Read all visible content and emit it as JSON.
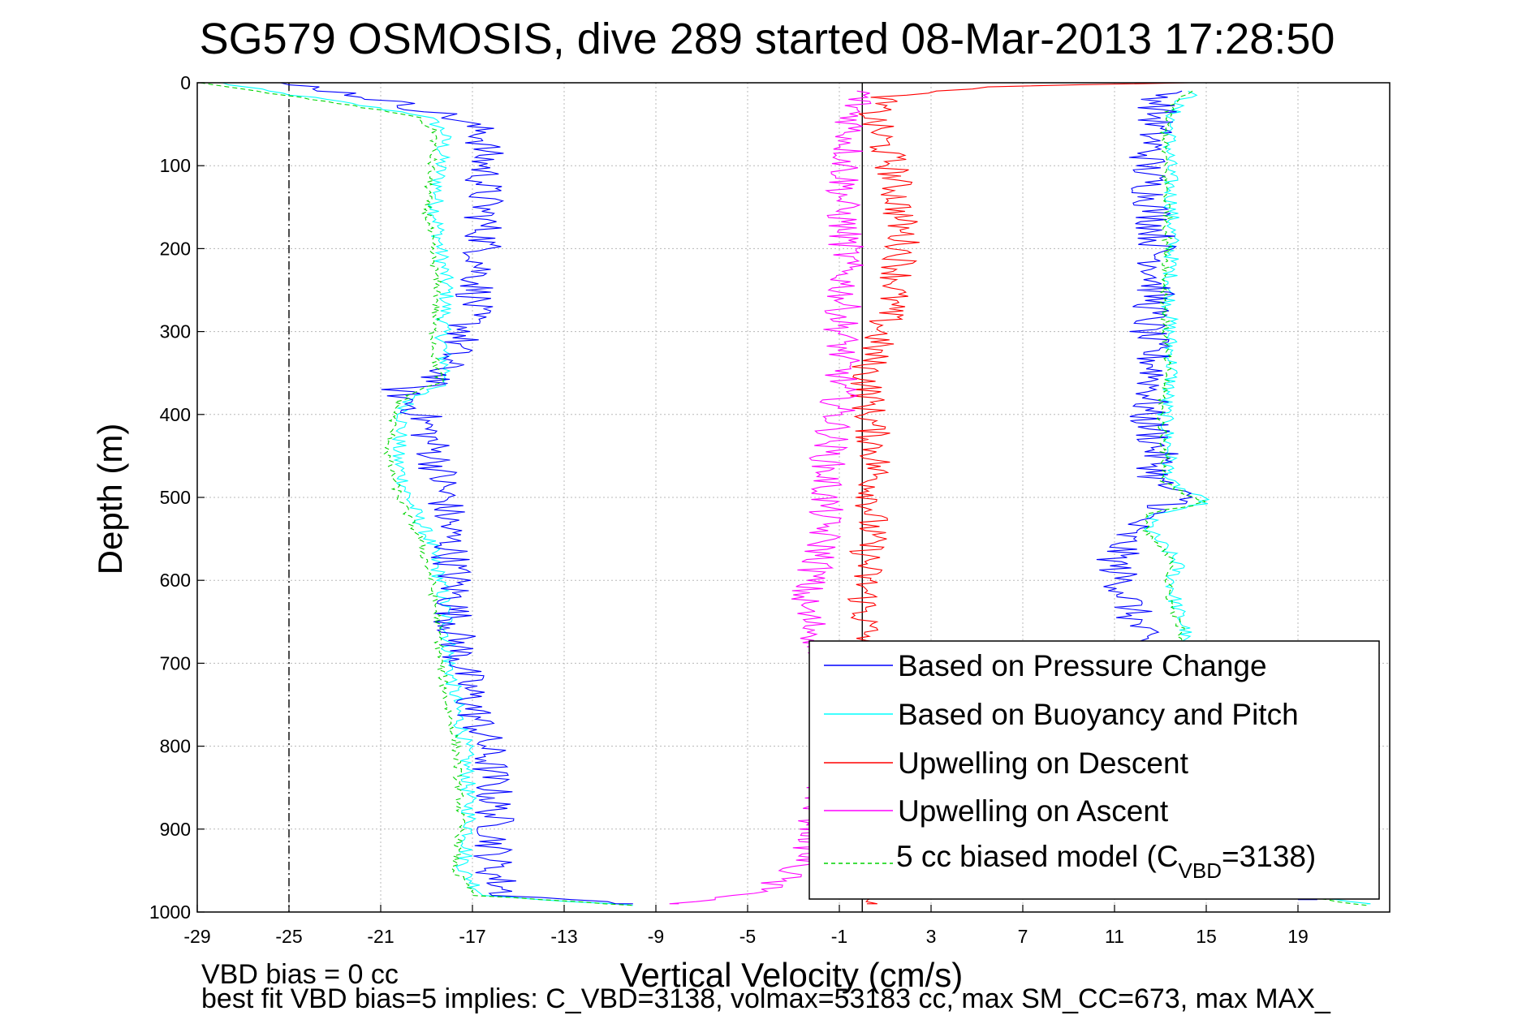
{
  "chart_data": {
    "type": "line",
    "title": "SG579 OSMOSIS, dive 289 started 08-Mar-2013 17:28:50",
    "xlabel": "Vertical Velocity (cm/s)",
    "ylabel": "Depth (m)",
    "xlim": [
      -29,
      23
    ],
    "ylim": [
      1000,
      0
    ],
    "y_reversed": true,
    "grid": true,
    "x_ticks": [
      "-29",
      "-25",
      "-21",
      "-17",
      "-13",
      "-9",
      "-5",
      "-1",
      "3",
      "7",
      "11",
      "15",
      "19"
    ],
    "y_ticks": [
      "0",
      "100",
      "200",
      "300",
      "400",
      "500",
      "600",
      "700",
      "800",
      "900",
      "1000"
    ],
    "reference_lines": [
      {
        "x": -25,
        "style": "dash-dot",
        "color": "#000000"
      },
      {
        "x": 0,
        "style": "solid",
        "color": "#000000"
      }
    ],
    "legend_position": "bottom-right",
    "legend": {
      "items": [
        {
          "label": "Based on Pressure Change",
          "color": "#0000ff",
          "dash": "solid"
        },
        {
          "label": "Based on Buoyancy and Pitch",
          "color": "#00ffff",
          "dash": "solid"
        },
        {
          "label": "Upwelling on Descent",
          "color": "#ff0000",
          "dash": "solid"
        },
        {
          "label": "Upwelling on Ascent",
          "color": "#ff00ff",
          "dash": "solid"
        }
      ],
      "model_label_pre": "5 cc biased model (C",
      "model_label_sub": "VBD",
      "model_label_post": "=3138)",
      "model_color": "#00d400"
    },
    "series": [
      {
        "name": "Based on Pressure Change",
        "color": "#0000ff",
        "descent": {
          "depth": [
            0,
            5,
            10,
            20,
            40,
            60,
            100,
            150,
            200,
            250,
            300,
            340,
            360,
            370,
            385,
            400,
            450,
            500,
            550,
            600,
            650,
            700,
            750,
            800,
            850,
            900,
            950,
            980,
            990
          ],
          "velocity": [
            -26,
            -24,
            -23,
            -21,
            -18,
            -16.5,
            -16.5,
            -16.5,
            -16.5,
            -16.8,
            -17.3,
            -18.2,
            -18.5,
            -20.2,
            -19.8,
            -19.2,
            -18.6,
            -18.2,
            -18,
            -17.8,
            -17.8,
            -17.5,
            -17,
            -16.4,
            -16.1,
            -16,
            -16.1,
            -15.5,
            -10
          ]
        },
        "ascent": {
          "depth": [
            985,
            960,
            900,
            850,
            800,
            750,
            700,
            680,
            640,
            600,
            580,
            560,
            540,
            520,
            510,
            505,
            480,
            450,
            420,
            400,
            380,
            350,
            300,
            250,
            200,
            150,
            100,
            60,
            30,
            10
          ],
          "velocity": [
            19,
            12.3,
            12.4,
            12.5,
            12.6,
            12.4,
            12.3,
            12.2,
            11.8,
            11.3,
            11,
            11.3,
            11.5,
            12.5,
            13.3,
            14.2,
            12.8,
            12.9,
            12.7,
            12.3,
            12.6,
            12.8,
            12.4,
            12.8,
            12.9,
            12.7,
            12.4,
            12.7,
            12.9,
            13.2
          ]
        }
      },
      {
        "name": "Based on Buoyancy and Pitch",
        "color": "#00ffff",
        "descent": {
          "depth": [
            0,
            10,
            20,
            40,
            60,
            100,
            150,
            200,
            250,
            300,
            340,
            360,
            370,
            385,
            400,
            450,
            500,
            550,
            600,
            650,
            700,
            750,
            800,
            850,
            900,
            950,
            980,
            992
          ],
          "velocity": [
            -28,
            -26,
            -23.5,
            -19,
            -18.2,
            -18.4,
            -18.6,
            -18.4,
            -18.1,
            -18.3,
            -18.2,
            -18,
            -19,
            -19.8,
            -20,
            -20.3,
            -19.8,
            -18.9,
            -18.4,
            -18.1,
            -18,
            -17.7,
            -17.3,
            -17.2,
            -17.1,
            -17.4,
            -16.5,
            -10
          ]
        },
        "ascent": {
          "depth": [
            990,
            960,
            900,
            850,
            800,
            750,
            700,
            660,
            640,
            620,
            600,
            580,
            540,
            520,
            510,
            505,
            500,
            480,
            450,
            420,
            400,
            380,
            350,
            300,
            250,
            200,
            150,
            100,
            60,
            30,
            10
          ],
          "velocity": [
            22,
            13.8,
            13.5,
            13.3,
            13.3,
            13.4,
            13.7,
            14.1,
            13.8,
            13.6,
            13.5,
            13.8,
            12.5,
            12.6,
            14.5,
            15,
            14.6,
            13.3,
            13.4,
            13.3,
            13.2,
            13.3,
            13.5,
            13.4,
            13.4,
            13.5,
            13.5,
            13.4,
            13.4,
            13.6,
            14.5
          ]
        }
      },
      {
        "name": "Upwelling on Descent",
        "color": "#ff0000",
        "depth": [
          0,
          5,
          10,
          15,
          20,
          40,
          60,
          100,
          150,
          200,
          250,
          300,
          350,
          400,
          450,
          500,
          550,
          600,
          650,
          700,
          750,
          800,
          850,
          900,
          950,
          990
        ],
        "velocity": [
          14,
          6,
          3,
          1.5,
          0.8,
          0.4,
          0.7,
          1.3,
          1.6,
          1.8,
          1.4,
          0.8,
          0.2,
          0.3,
          0.6,
          0.5,
          0.3,
          0.1,
          0.1,
          0.3,
          0.3,
          0.2,
          0.3,
          0.2,
          0.1,
          0.2
        ]
      },
      {
        "name": "Upwelling on Ascent",
        "color": "#ff00ff",
        "depth": [
          990,
          980,
          960,
          940,
          920,
          900,
          880,
          860,
          840,
          800,
          750,
          700,
          660,
          640,
          620,
          600,
          580,
          550,
          500,
          450,
          400,
          350,
          300,
          250,
          200,
          150,
          100,
          60,
          30,
          10
        ],
        "velocity": [
          -8,
          -5,
          -3.5,
          -2.5,
          -2.2,
          -2,
          -2,
          -1.8,
          -1.6,
          -1.4,
          -1.3,
          -1.5,
          -2.1,
          -2.5,
          -2.6,
          -2.3,
          -1.9,
          -1.7,
          -1.6,
          -1.5,
          -1.1,
          -0.9,
          -0.9,
          -0.8,
          -0.7,
          -0.9,
          -0.7,
          -0.5,
          -0.3,
          0
        ]
      },
      {
        "name": "5 cc biased model (CVBD=3138)",
        "color": "#00d400",
        "descent": {
          "depth": [
            0,
            10,
            20,
            40,
            60,
            100,
            150,
            200,
            250,
            300,
            340,
            360,
            370,
            385,
            400,
            450,
            500,
            550,
            600,
            650,
            700,
            750,
            800,
            850,
            900,
            950,
            980,
            992
          ],
          "velocity": [
            -29,
            -26.5,
            -24,
            -19.5,
            -18.6,
            -18.8,
            -19,
            -18.8,
            -18.5,
            -18.7,
            -18.6,
            -18.4,
            -19.3,
            -20.2,
            -20.4,
            -20.7,
            -20.2,
            -19.3,
            -18.8,
            -18.5,
            -18.4,
            -18.1,
            -17.7,
            -17.6,
            -17.5,
            -17.8,
            -16.9,
            -10
          ]
        },
        "ascent": {
          "depth": [
            992,
            960,
            900,
            850,
            800,
            750,
            700,
            660,
            640,
            620,
            600,
            580,
            540,
            520,
            510,
            505,
            500,
            480,
            450,
            420,
            400,
            380,
            350,
            300,
            250,
            200,
            150,
            100,
            60,
            30,
            10
          ],
          "velocity": [
            22,
            13.6,
            13.3,
            13.1,
            13.1,
            13.2,
            13.5,
            13.9,
            13.6,
            13.4,
            13.3,
            13.6,
            12.3,
            12.4,
            14.3,
            14.8,
            14.4,
            13.1,
            13.2,
            13.1,
            13,
            13.1,
            13.3,
            13.2,
            13.2,
            13.3,
            13.3,
            13.2,
            13.2,
            13.4,
            14.3
          ]
        }
      }
    ]
  },
  "footnotes": {
    "line1": "VBD bias = 0 cc",
    "line2": "best fit VBD bias=5 implies: C_VBD=3138, volmax=53183 cc, max SM_CC=673, max MAX_"
  }
}
